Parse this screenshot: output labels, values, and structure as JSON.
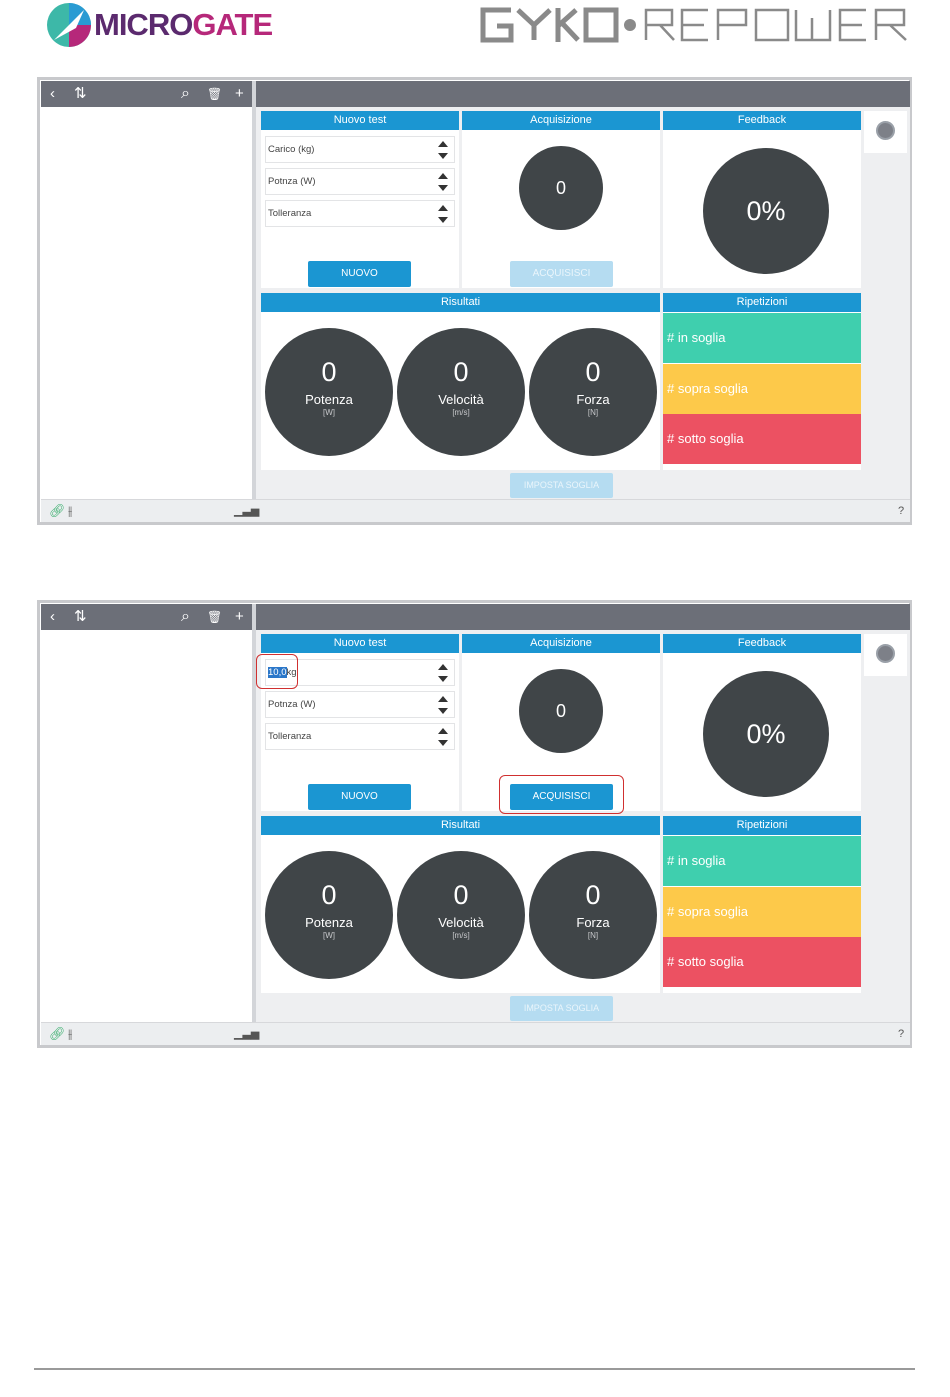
{
  "header": {
    "logo_micro": "MICRO",
    "logo_gate": "GATE",
    "brand_colors": {
      "micro": "#5b2a6e",
      "gate": "#b6287a",
      "accent": "#1b96d2"
    }
  },
  "app": {
    "toolbar_icons": [
      "back-icon",
      "sort-icon",
      "search-icon",
      "trash-icon",
      "add-icon"
    ],
    "glyphs": {
      "back": "‹",
      "sort": "⇅",
      "search": "⌕",
      "trash": "🗑",
      "add": "+",
      "help": "?"
    }
  },
  "screens": [
    {
      "nuovo_title": "Nuovo test",
      "acq_title": "Acquisizione",
      "fb_title": "Feedback",
      "ris_title": "Risultati",
      "rip_title": "Ripetizioni",
      "field1": "Carico (kg)",
      "field2": "Potnza (W)",
      "field3": "Tolleranza",
      "nuovo_btn": "NUOVO",
      "acq_btn": "ACQUISISCI",
      "acq_value": "0",
      "fb_value": "0%",
      "pot_value": "0",
      "pot_label": "Potenza",
      "pot_unit": "[W]",
      "vel_value": "0",
      "vel_label": "Velocità",
      "vel_unit": "[m/s]",
      "for_value": "0",
      "for_label": "Forza",
      "for_unit": "[N]",
      "rep_in": "# in soglia",
      "rep_sopra": "# sopra soglia",
      "rep_sotto": "# sotto soglia",
      "imposta_btn": "IMPOSTA SOGLIA",
      "help": "?"
    },
    {
      "nuovo_title": "Nuovo test",
      "acq_title": "Acquisizione",
      "fb_title": "Feedback",
      "ris_title": "Risultati",
      "rip_title": "Ripetizioni",
      "field1_selected": "10,0",
      "field1_unit": "kg",
      "field2": "Potnza (W)",
      "field3": "Tolleranza",
      "nuovo_btn": "NUOVO",
      "acq_btn": "ACQUISISCI",
      "acq_value": "0",
      "fb_value": "0%",
      "pot_value": "0",
      "pot_label": "Potenza",
      "pot_unit": "[W]",
      "vel_value": "0",
      "vel_label": "Velocità",
      "vel_unit": "[m/s]",
      "for_value": "0",
      "for_label": "Forza",
      "for_unit": "[N]",
      "rep_in": "# in soglia",
      "rep_sopra": "# sopra soglia",
      "rep_sotto": "# sotto soglia",
      "imposta_btn": "IMPOSTA SOGLIA",
      "help": "?"
    }
  ]
}
